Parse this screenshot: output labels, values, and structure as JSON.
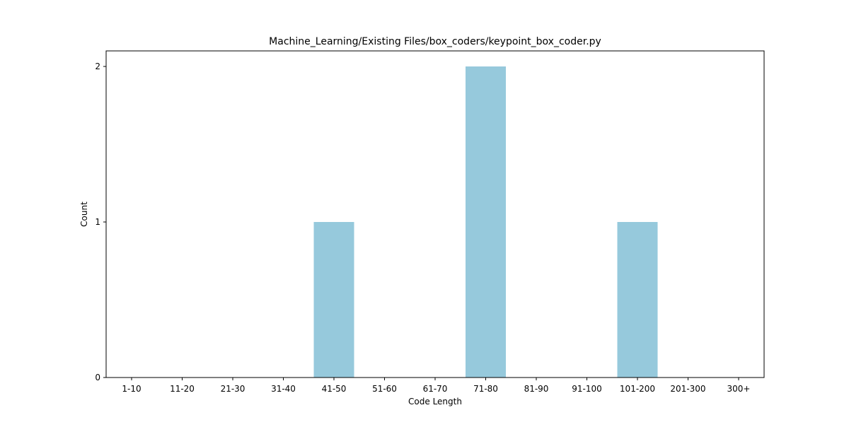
{
  "chart_data": {
    "type": "bar",
    "title": "Machine_Learning/Existing Files/box_coders/keypoint_box_coder.py",
    "xlabel": "Code Length",
    "ylabel": "Count",
    "categories": [
      "1-10",
      "11-20",
      "21-30",
      "31-40",
      "41-50",
      "51-60",
      "61-70",
      "71-80",
      "81-90",
      "91-100",
      "101-200",
      "201-300",
      "300+"
    ],
    "values": [
      0,
      0,
      0,
      0,
      1,
      0,
      0,
      2,
      0,
      0,
      1,
      0,
      0
    ],
    "yticks": [
      0,
      1,
      2
    ],
    "ylim": [
      0,
      2.1
    ],
    "grid": false,
    "colors": {
      "bar": "#96c9dc"
    }
  }
}
